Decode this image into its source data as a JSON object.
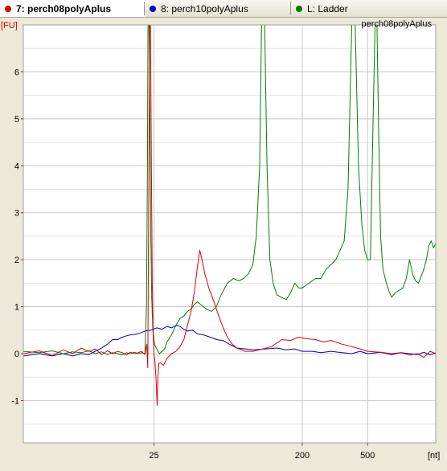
{
  "tabs": [
    {
      "label": "7: perch08polyAplus",
      "color": "#e00000",
      "active": true
    },
    {
      "label": "8: perch10polyAplus",
      "color": "#0000cc",
      "active": false
    },
    {
      "label": "L: Ladder",
      "color": "#008000",
      "active": false
    }
  ],
  "sample_label": "perch08polyAplus",
  "chart_data": {
    "type": "line",
    "ylabel": "[FU]",
    "xlabel": "[nt]",
    "ylim": [
      -1.9,
      7.0
    ],
    "x_scale": "log",
    "xlim": [
      4,
      1300
    ],
    "y_ticks": [
      -1,
      0,
      1,
      2,
      3,
      4,
      5,
      6
    ],
    "x_ticks": [
      25,
      200,
      500
    ],
    "grid": true,
    "series": [
      {
        "name": "7: perch08polyAplus",
        "color": "#e00000",
        "points": [
          [
            4,
            0.0
          ],
          [
            5,
            0.06
          ],
          [
            6,
            -0.04
          ],
          [
            7,
            0.08
          ],
          [
            8,
            0.0
          ],
          [
            9,
            0.12
          ],
          [
            10,
            0.05
          ],
          [
            11,
            0.1
          ],
          [
            12,
            -0.02
          ],
          [
            13,
            0.06
          ],
          [
            14,
            0.0
          ],
          [
            15,
            0.05
          ],
          [
            16,
            0.02
          ],
          [
            17,
            -0.03
          ],
          [
            18,
            0.03
          ],
          [
            19,
            0.0
          ],
          [
            20,
            0.02
          ],
          [
            21,
            0.05
          ],
          [
            22,
            -0.02
          ],
          [
            22.6,
            0.2
          ],
          [
            22.9,
            -0.3
          ],
          [
            23.2,
            3.0
          ],
          [
            23.5,
            7.0
          ],
          [
            23.8,
            7.0
          ],
          [
            24.1,
            4.0
          ],
          [
            24.4,
            1.5
          ],
          [
            24.7,
            0.4
          ],
          [
            25,
            0.0
          ],
          [
            25.3,
            -0.15
          ],
          [
            25.8,
            -0.6
          ],
          [
            26.1,
            -1.1
          ],
          [
            26.4,
            -0.5
          ],
          [
            26.8,
            -0.2
          ],
          [
            27.5,
            -0.2
          ],
          [
            28.5,
            -0.25
          ],
          [
            30,
            -0.1
          ],
          [
            32,
            0.0
          ],
          [
            34,
            0.05
          ],
          [
            36,
            0.15
          ],
          [
            38,
            0.3
          ],
          [
            40,
            0.6
          ],
          [
            42,
            0.9
          ],
          [
            44,
            1.3
          ],
          [
            46,
            1.85
          ],
          [
            47.5,
            2.2
          ],
          [
            49,
            2.0
          ],
          [
            51,
            1.7
          ],
          [
            54,
            1.4
          ],
          [
            58,
            1.1
          ],
          [
            62,
            0.8
          ],
          [
            66,
            0.55
          ],
          [
            70,
            0.35
          ],
          [
            75,
            0.2
          ],
          [
            80,
            0.12
          ],
          [
            90,
            0.05
          ],
          [
            100,
            0.05
          ],
          [
            115,
            0.1
          ],
          [
            130,
            0.15
          ],
          [
            150,
            0.3
          ],
          [
            170,
            0.28
          ],
          [
            190,
            0.35
          ],
          [
            210,
            0.32
          ],
          [
            240,
            0.3
          ],
          [
            270,
            0.25
          ],
          [
            300,
            0.28
          ],
          [
            350,
            0.2
          ],
          [
            400,
            0.15
          ],
          [
            450,
            0.1
          ],
          [
            500,
            0.05
          ],
          [
            600,
            0.03
          ],
          [
            700,
            0.0
          ],
          [
            800,
            0.02
          ],
          [
            900,
            -0.03
          ],
          [
            1000,
            0.0
          ],
          [
            1100,
            -0.08
          ],
          [
            1200,
            0.05
          ],
          [
            1300,
            0.0
          ]
        ]
      },
      {
        "name": "8: perch10polyAplus",
        "color": "#0000cc",
        "points": [
          [
            4,
            -0.05
          ],
          [
            5,
            0.0
          ],
          [
            6,
            -0.05
          ],
          [
            7,
            0.0
          ],
          [
            8,
            -0.05
          ],
          [
            9,
            0.0
          ],
          [
            10,
            -0.02
          ],
          [
            11,
            0.05
          ],
          [
            12,
            0.12
          ],
          [
            13,
            0.2
          ],
          [
            14,
            0.3
          ],
          [
            15,
            0.3
          ],
          [
            16,
            0.35
          ],
          [
            17,
            0.38
          ],
          [
            18,
            0.4
          ],
          [
            20,
            0.42
          ],
          [
            22,
            0.48
          ],
          [
            24,
            0.5
          ],
          [
            26,
            0.55
          ],
          [
            28,
            0.52
          ],
          [
            30,
            0.58
          ],
          [
            32,
            0.55
          ],
          [
            34,
            0.6
          ],
          [
            36,
            0.58
          ],
          [
            38,
            0.52
          ],
          [
            40,
            0.48
          ],
          [
            43,
            0.5
          ],
          [
            46,
            0.42
          ],
          [
            50,
            0.4
          ],
          [
            55,
            0.35
          ],
          [
            60,
            0.3
          ],
          [
            66,
            0.28
          ],
          [
            72,
            0.2
          ],
          [
            80,
            0.12
          ],
          [
            90,
            0.1
          ],
          [
            100,
            0.08
          ],
          [
            120,
            0.1
          ],
          [
            140,
            0.12
          ],
          [
            160,
            0.08
          ],
          [
            180,
            0.1
          ],
          [
            200,
            0.05
          ],
          [
            230,
            0.05
          ],
          [
            260,
            0.02
          ],
          [
            300,
            0.05
          ],
          [
            350,
            0.02
          ],
          [
            400,
            0.0
          ],
          [
            450,
            0.05
          ],
          [
            500,
            0.0
          ],
          [
            600,
            0.03
          ],
          [
            700,
            -0.02
          ],
          [
            800,
            0.02
          ],
          [
            900,
            0.0
          ],
          [
            1000,
            -0.02
          ],
          [
            1100,
            0.03
          ],
          [
            1200,
            -0.03
          ],
          [
            1300,
            0.02
          ]
        ]
      },
      {
        "name": "L: Ladder",
        "color": "#008000",
        "points": [
          [
            4,
            0.05
          ],
          [
            5,
            0.02
          ],
          [
            6,
            0.06
          ],
          [
            7,
            0.0
          ],
          [
            8,
            0.04
          ],
          [
            9,
            0.02
          ],
          [
            10,
            0.06
          ],
          [
            11,
            0.0
          ],
          [
            12,
            0.04
          ],
          [
            13,
            -0.02
          ],
          [
            14,
            0.02
          ],
          [
            15,
            0.0
          ],
          [
            16,
            -0.03
          ],
          [
            17,
            0.02
          ],
          [
            18,
            0.0
          ],
          [
            19,
            0.03
          ],
          [
            20,
            0.0
          ],
          [
            21,
            0.02
          ],
          [
            22,
            0.0
          ],
          [
            22.5,
            1.0
          ],
          [
            22.8,
            4.0
          ],
          [
            23.0,
            7.0
          ],
          [
            23.3,
            7.0
          ],
          [
            23.6,
            5.0
          ],
          [
            23.9,
            2.5
          ],
          [
            24.2,
            1.2
          ],
          [
            24.6,
            0.5
          ],
          [
            25.2,
            0.2
          ],
          [
            26,
            0.1
          ],
          [
            27,
            0.0
          ],
          [
            28,
            0.05
          ],
          [
            29,
            0.1
          ],
          [
            30,
            0.25
          ],
          [
            32,
            0.4
          ],
          [
            34,
            0.6
          ],
          [
            36,
            0.75
          ],
          [
            38,
            0.8
          ],
          [
            40,
            0.9
          ],
          [
            42,
            0.95
          ],
          [
            44,
            1.05
          ],
          [
            46,
            1.1
          ],
          [
            48,
            1.05
          ],
          [
            52,
            0.95
          ],
          [
            56,
            0.9
          ],
          [
            60,
            1.0
          ],
          [
            64,
            1.25
          ],
          [
            70,
            1.5
          ],
          [
            76,
            1.6
          ],
          [
            82,
            1.55
          ],
          [
            88,
            1.6
          ],
          [
            94,
            1.7
          ],
          [
            100,
            1.9
          ],
          [
            105,
            2.5
          ],
          [
            110,
            4.0
          ],
          [
            113,
            7.0
          ],
          [
            118,
            7.0
          ],
          [
            122,
            4.0
          ],
          [
            127,
            2.0
          ],
          [
            133,
            1.5
          ],
          [
            140,
            1.25
          ],
          [
            150,
            1.2
          ],
          [
            160,
            1.15
          ],
          [
            170,
            1.3
          ],
          [
            180,
            1.5
          ],
          [
            190,
            1.4
          ],
          [
            200,
            1.4
          ],
          [
            220,
            1.5
          ],
          [
            240,
            1.6
          ],
          [
            260,
            1.6
          ],
          [
            280,
            1.8
          ],
          [
            300,
            1.9
          ],
          [
            320,
            2.0
          ],
          [
            340,
            2.2
          ],
          [
            360,
            2.4
          ],
          [
            380,
            3.5
          ],
          [
            400,
            7.0
          ],
          [
            420,
            7.0
          ],
          [
            440,
            4.0
          ],
          [
            460,
            2.8
          ],
          [
            480,
            2.2
          ],
          [
            500,
            2.0
          ],
          [
            520,
            2.0
          ],
          [
            540,
            5.0
          ],
          [
            555,
            7.0
          ],
          [
            570,
            7.0
          ],
          [
            585,
            4.5
          ],
          [
            600,
            2.5
          ],
          [
            620,
            1.8
          ],
          [
            650,
            1.5
          ],
          [
            680,
            1.3
          ],
          [
            700,
            1.2
          ],
          [
            740,
            1.3
          ],
          [
            780,
            1.35
          ],
          [
            820,
            1.4
          ],
          [
            860,
            1.6
          ],
          [
            900,
            2.0
          ],
          [
            940,
            1.7
          ],
          [
            980,
            1.55
          ],
          [
            1020,
            1.5
          ],
          [
            1060,
            1.65
          ],
          [
            1100,
            1.8
          ],
          [
            1140,
            2.0
          ],
          [
            1180,
            2.3
          ],
          [
            1220,
            2.4
          ],
          [
            1260,
            2.25
          ],
          [
            1300,
            2.35
          ]
        ]
      }
    ]
  }
}
